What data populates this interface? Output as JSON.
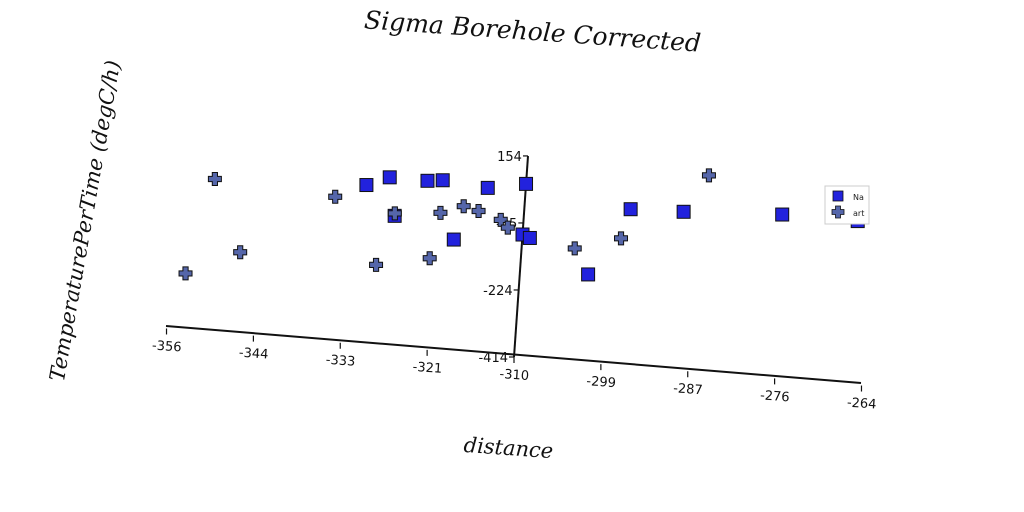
{
  "chart_data": {
    "type": "scatter",
    "title": "Sigma Borehole Corrected",
    "xlabel": "distance",
    "ylabel": "TemperaturePerTime (degC/h)",
    "xlim": [
      -356,
      -264
    ],
    "ylim": [
      -414,
      154
    ],
    "x_ticks": [
      "-356",
      "-344",
      "-333",
      "-321",
      "-310",
      "-299",
      "-287",
      "-276",
      "-264"
    ],
    "y_ticks": [
      "154",
      "-35",
      "-224",
      "-414"
    ],
    "legend_position": "right",
    "series": [
      {
        "name": "Na",
        "marker": "square",
        "color": "#2222dd",
        "points": [
          {
            "x": -331,
            "y": 35
          },
          {
            "x": -328,
            "y": 62
          },
          {
            "x": -323,
            "y": 61
          },
          {
            "x": -321,
            "y": 66
          },
          {
            "x": -315,
            "y": 55
          },
          {
            "x": -310,
            "y": 75
          },
          {
            "x": -327,
            "y": -45
          },
          {
            "x": -319,
            "y": -98
          },
          {
            "x": -310,
            "y": -68
          },
          {
            "x": -309,
            "y": -76
          },
          {
            "x": -301,
            "y": -165
          },
          {
            "x": -296,
            "y": 28
          },
          {
            "x": -289,
            "y": 33
          },
          {
            "x": -276,
            "y": 48
          },
          {
            "x": -266,
            "y": 47
          }
        ]
      },
      {
        "name": "art",
        "marker": "plus",
        "color": "#5566aa",
        "points": [
          {
            "x": -351,
            "y": 17
          },
          {
            "x": -347,
            "y": -183
          },
          {
            "x": -354,
            "y": -255
          },
          {
            "x": -335,
            "y": -5
          },
          {
            "x": -327,
            "y": -38
          },
          {
            "x": -329,
            "y": -187
          },
          {
            "x": -321,
            "y": -26
          },
          {
            "x": -318,
            "y": -2
          },
          {
            "x": -316,
            "y": -12
          },
          {
            "x": -313,
            "y": -32
          },
          {
            "x": -312,
            "y": -52
          },
          {
            "x": -322,
            "y": -156
          },
          {
            "x": -303,
            "y": -95
          },
          {
            "x": -297,
            "y": -56
          },
          {
            "x": -286,
            "y": 141
          }
        ]
      }
    ]
  }
}
